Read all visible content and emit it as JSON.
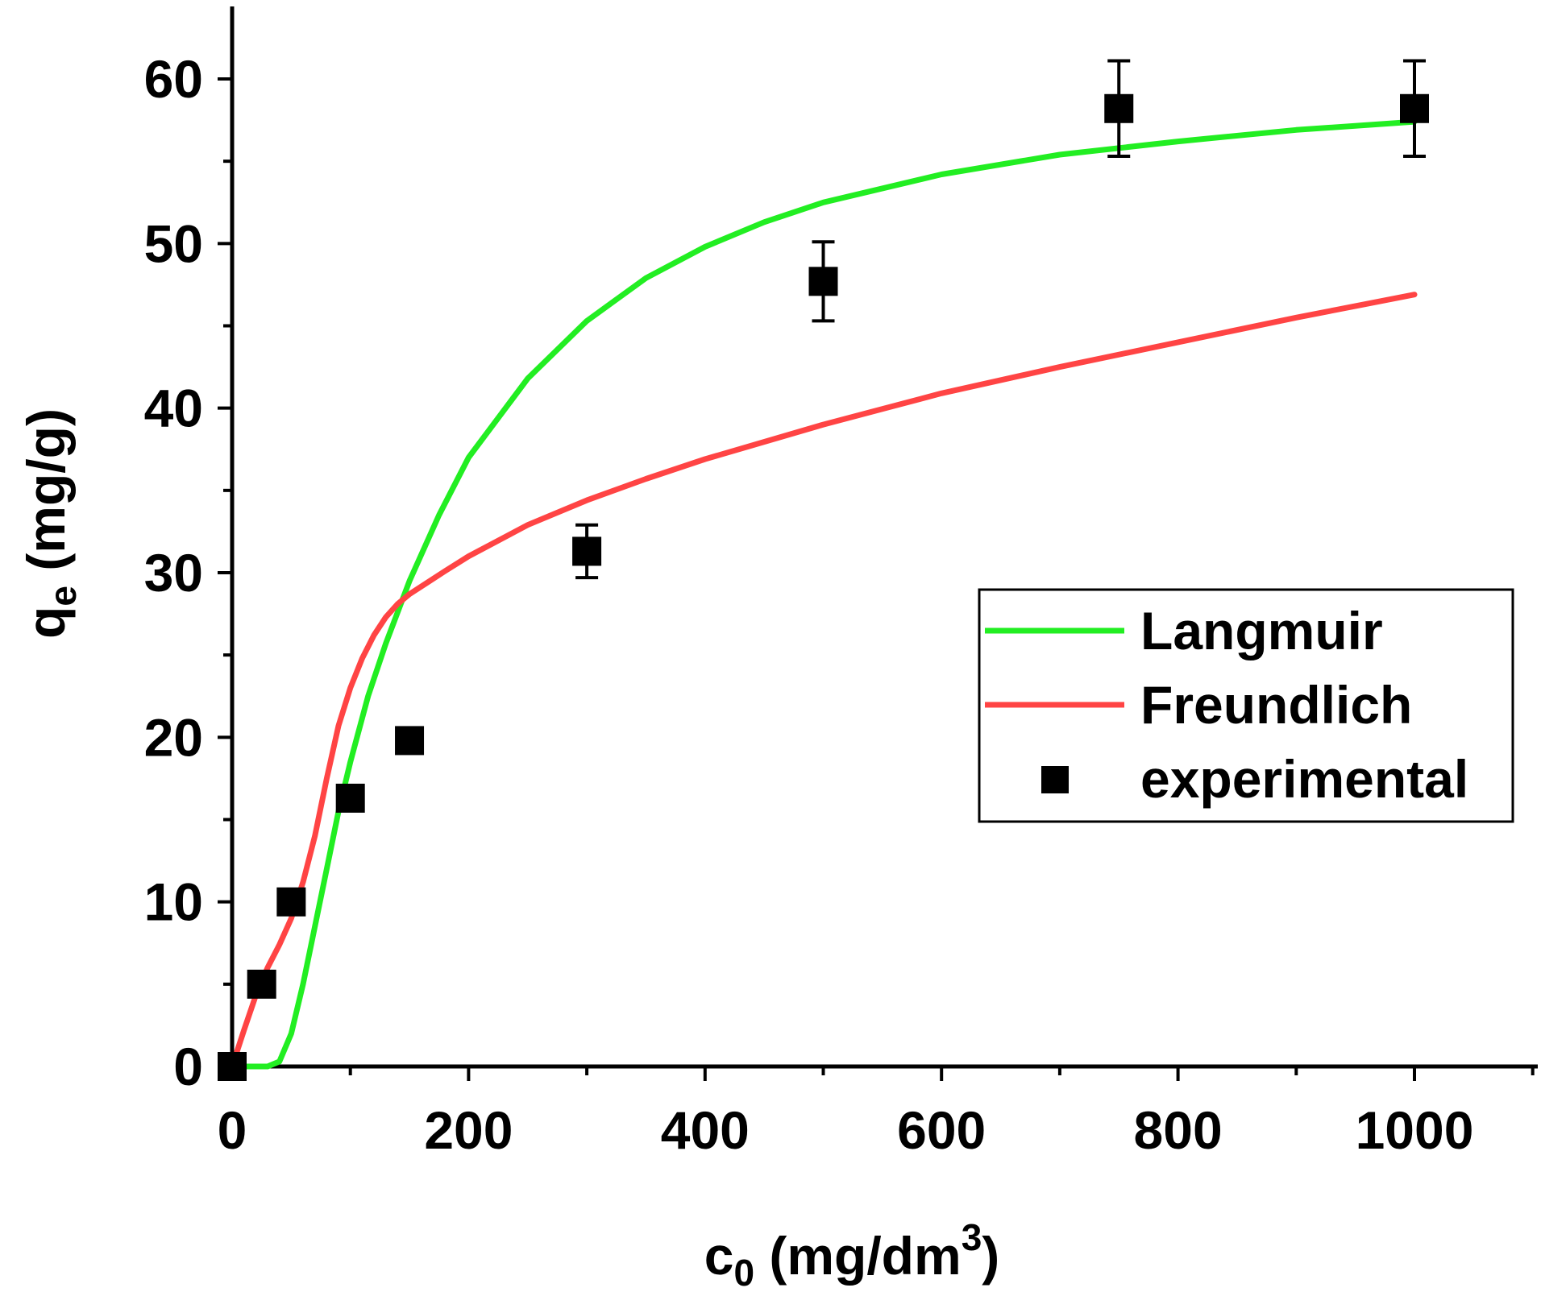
{
  "chart_data": {
    "type": "scatter",
    "xlabel": {
      "main": "c",
      "sub": "0",
      "unit_pre": " (mg/dm",
      "sup": "3",
      "unit_post": ")"
    },
    "ylabel": {
      "main": "q",
      "sub": "e",
      "unit": " (mg/g)"
    },
    "xlim": [
      0,
      1100
    ],
    "ylim": [
      0,
      65
    ],
    "xticks": [
      0,
      200,
      400,
      600,
      800,
      1000
    ],
    "yticks": [
      0,
      10,
      20,
      30,
      40,
      50,
      60
    ],
    "grid": false,
    "legend_position": "middle-right",
    "colors": {
      "langmuir": "#22ee22",
      "freundlich": "#ff4444",
      "experimental": "#000000"
    },
    "series": [
      {
        "name": "Langmuir",
        "kind": "line",
        "x": [
          0,
          20,
          30,
          40,
          50,
          60,
          70,
          80,
          90,
          100,
          115,
          130,
          150,
          175,
          200,
          250,
          300,
          350,
          400,
          450,
          500,
          600,
          700,
          800,
          900,
          1000
        ],
        "y": [
          0,
          0,
          0,
          0.3,
          2,
          5,
          8.5,
          12,
          15.5,
          18.5,
          22.5,
          25.7,
          29.5,
          33.5,
          37,
          41.8,
          45.3,
          47.9,
          49.8,
          51.3,
          52.5,
          54.2,
          55.4,
          56.2,
          56.9,
          57.4
        ]
      },
      {
        "name": "Freundlich",
        "kind": "line",
        "x": [
          0,
          10,
          20,
          30,
          40,
          50,
          60,
          70,
          80,
          90,
          100,
          110,
          120,
          130,
          140,
          150,
          165,
          180,
          200,
          250,
          300,
          350,
          400,
          500,
          600,
          700,
          800,
          900,
          1000
        ],
        "y": [
          0,
          2.2,
          4.3,
          6,
          7.4,
          9,
          11.2,
          14,
          17.5,
          20.7,
          23,
          24.8,
          26.2,
          27.3,
          28.1,
          28.7,
          29.4,
          30.1,
          31,
          32.9,
          34.4,
          35.7,
          36.9,
          39,
          40.9,
          42.5,
          44,
          45.5,
          46.9
        ]
      },
      {
        "name": "experimental",
        "kind": "scatter",
        "x": [
          0,
          25,
          50,
          100,
          150,
          300,
          500,
          750,
          1000
        ],
        "y": [
          0,
          5,
          10,
          16.3,
          19.8,
          31.3,
          47.7,
          58.2,
          58.2
        ],
        "err": [
          0.2,
          0.3,
          0.3,
          0.4,
          0.4,
          1.6,
          2.4,
          2.9,
          2.9
        ]
      }
    ]
  }
}
